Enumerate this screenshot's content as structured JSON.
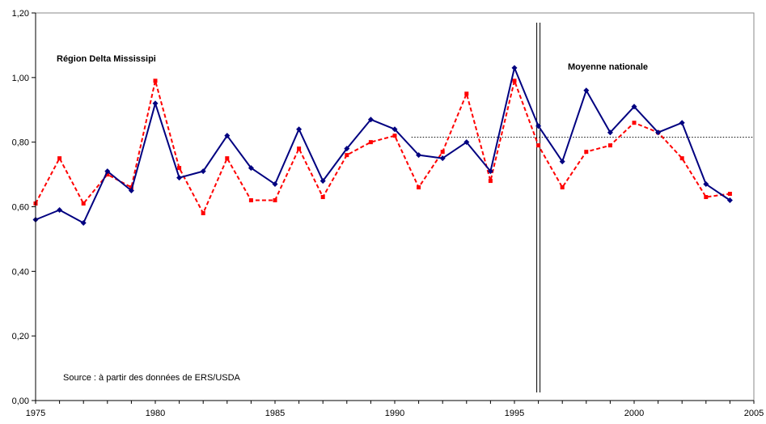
{
  "chart_data": {
    "type": "line",
    "title": "",
    "xlabel": "",
    "ylabel": "",
    "xlim": [
      1975,
      2005
    ],
    "ylim": [
      0,
      1.2
    ],
    "x_ticks": [
      "1975",
      "1980",
      "1985",
      "1990",
      "1995",
      "2000",
      "2005"
    ],
    "y_ticks": [
      "0,00",
      "0,20",
      "0,40",
      "0,60",
      "0,80",
      "1,00",
      "1,20"
    ],
    "grid": false,
    "x": [
      1975,
      1976,
      1977,
      1978,
      1979,
      1980,
      1981,
      1982,
      1983,
      1984,
      1985,
      1986,
      1987,
      1988,
      1989,
      1990,
      1991,
      1992,
      1993,
      1994,
      1995,
      1996,
      1997,
      1998,
      1999,
      2000,
      2001,
      2002,
      2003,
      2004
    ],
    "series": [
      {
        "style": "solid",
        "color": "#000080",
        "values": [
          0.56,
          0.59,
          0.55,
          0.71,
          0.65,
          0.92,
          0.69,
          0.71,
          0.82,
          0.72,
          0.67,
          0.84,
          0.68,
          0.78,
          0.87,
          0.84,
          0.76,
          0.75,
          0.8,
          0.71,
          1.03,
          0.85,
          0.74,
          0.96,
          0.83,
          0.91,
          0.83,
          0.86,
          0.67,
          0.62
        ]
      },
      {
        "style": "dashed",
        "color": "#ff0000",
        "values": [
          0.61,
          0.75,
          0.61,
          0.7,
          0.66,
          0.99,
          0.72,
          0.58,
          0.75,
          0.62,
          0.62,
          0.78,
          0.63,
          0.76,
          0.8,
          0.82,
          0.66,
          0.77,
          0.95,
          0.68,
          0.99,
          0.79,
          0.66,
          0.77,
          0.79,
          0.86,
          0.83,
          0.75,
          0.63,
          0.64
        ]
      }
    ],
    "reference_lines": [
      {
        "kind": "horizontal",
        "y": 0.815,
        "x_from": 1990.7,
        "x_to": 2005,
        "style": "dotted",
        "color": "#000000"
      },
      {
        "kind": "vertical",
        "x": 1996,
        "style": "double",
        "color": "#000000"
      }
    ],
    "annotations": {
      "left": "Région Delta Mississipi",
      "right": "Moyenne nationale",
      "source": "Source : à partir des données de ERS/USDA"
    }
  }
}
